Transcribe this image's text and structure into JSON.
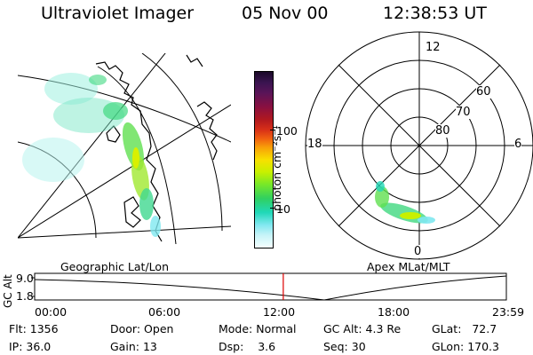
{
  "header": {
    "instrument": "Ultraviolet Imager",
    "date": "05 Nov 00",
    "time": "12:38:53 UT"
  },
  "colorbar": {
    "unit_label": "photon cm⁻²s⁻¹",
    "ticks": [
      "100",
      "10"
    ],
    "colors": [
      "#1a0828",
      "#3a1450",
      "#5a1458",
      "#8a1040",
      "#b01820",
      "#d83018",
      "#f06010",
      "#f8a008",
      "#f8e000",
      "#c8f000",
      "#78e828",
      "#30d060",
      "#20d8b8",
      "#80e8f0",
      "#c8f4f8",
      "#f4ffff"
    ]
  },
  "geo_panel": {
    "label": "Geographic Lat/Lon"
  },
  "polar_panel": {
    "label": "Apex MLat/MLT",
    "clock_labels": {
      "top": "12",
      "left": "18",
      "right": "6",
      "bottom": "0"
    },
    "lat_labels": [
      "60",
      "70",
      "80"
    ]
  },
  "alt_plot": {
    "ylabel": "GC Alt",
    "yticks": [
      "9.0",
      "1.8"
    ],
    "xticks": [
      "00:00",
      "06:00",
      "12:00",
      "18:00",
      "23:59"
    ],
    "marker_time_hours": 12.65,
    "marker_color": "#dd0000"
  },
  "info": {
    "flt_label": "Flt:",
    "flt": "1356",
    "ip_label": "IP:",
    "ip": "36.0",
    "door_label": "Door:",
    "door": "Open",
    "gain_label": "Gain:",
    "gain": "13",
    "mode_label": "Mode:",
    "mode": "Normal",
    "dsp_label": "Dsp:",
    "dsp": "3.6",
    "gcalt_label": "GC Alt:",
    "gcalt": "4.3 Re",
    "seq_label": "Seq:",
    "seq": "30",
    "glat_label": "GLat:",
    "glat": "72.7",
    "glon_label": "GLon:",
    "glon": "170.3"
  }
}
